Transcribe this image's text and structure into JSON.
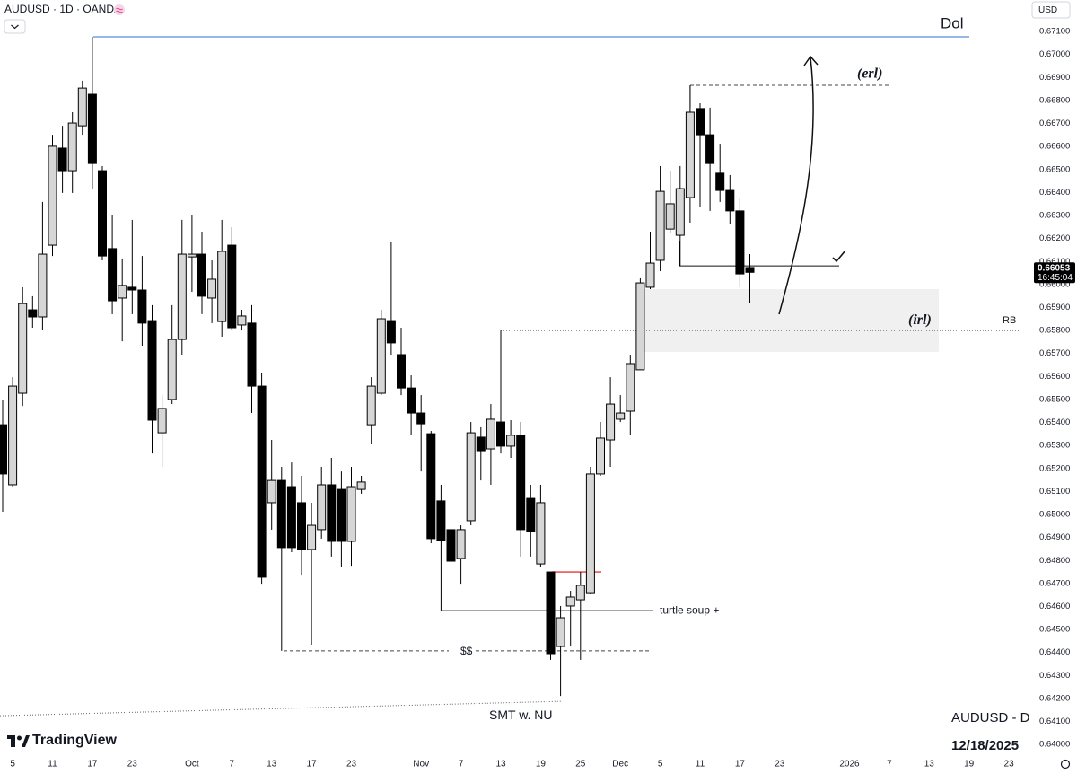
{
  "chart_data": {
    "type": "candlestick",
    "title": "AUDUSD · 1D · OANDA",
    "currency": "USD",
    "brand": "TradingView",
    "symbol_label": "AUDUSD - D",
    "date_label": "12/18/2025",
    "countdown": "16:45:04",
    "up_color": "#d6d6d6",
    "down_color": "#000000",
    "grid": false,
    "categories": [
      null,
      "5",
      null,
      null,
      null,
      "11",
      null,
      null,
      null,
      "17",
      null,
      null,
      null,
      "23",
      null,
      null,
      null,
      null,
      null,
      "Oct",
      null,
      null,
      null,
      "7",
      null,
      null,
      null,
      "13",
      null,
      null,
      null,
      "17",
      null,
      null,
      null,
      "23",
      null,
      null,
      null,
      null,
      null,
      null,
      "Nov",
      null,
      null,
      null,
      "7",
      null,
      null,
      null,
      "13",
      null,
      null,
      null,
      "19",
      null,
      null,
      null,
      "25",
      null,
      null,
      null,
      "Dec",
      null,
      null,
      null,
      "5",
      null,
      null,
      null,
      "11",
      null,
      null,
      null,
      "17",
      null,
      null,
      null,
      "23",
      null,
      null,
      null,
      null,
      null,
      null,
      "2026",
      null,
      null,
      null,
      "7",
      null,
      null,
      null,
      "13",
      null,
      null,
      null,
      "19",
      null,
      null,
      null,
      "23"
    ],
    "open": [
      0.6539,
      0.65129,
      0.65527,
      0.6589,
      0.65859,
      0.66171,
      0.66593,
      0.66495,
      0.6669,
      0.66827,
      0.66495,
      0.66156,
      0.65941,
      0.65988,
      0.65976,
      0.65843,
      0.65355,
      0.655,
      0.65761,
      0.6612,
      0.66132,
      0.65941,
      0.65839,
      0.66171,
      0.65824,
      0.65832,
      0.65558,
      0.65051,
      0.65148,
      0.65121,
      0.65051,
      0.64848,
      0.64934,
      0.65129,
      0.65109,
      0.64883,
      0.65109,
      0.6539,
      0.65527,
      0.65843,
      0.65695,
      0.6555,
      0.65441,
      0.65351,
      0.65059,
      0.64934,
      0.64809,
      0.64973,
      0.65336,
      0.65285,
      0.65402,
      0.65297,
      0.65344,
      0.6507,
      0.64785,
      0.6475,
      0.64426,
      0.64602,
      0.64629,
      0.6466,
      0.65176,
      0.65324,
      0.65414,
      0.65449,
      0.65629,
      0.65988,
      0.66105,
      0.66241,
      0.66214,
      0.66378,
      0.66765,
      0.66651,
      0.66484,
      0.66409,
      0.6632,
      0.66074,
      null,
      null,
      null,
      null,
      null,
      null,
      null,
      null,
      null,
      null,
      null,
      null,
      null,
      null,
      null,
      null,
      null,
      null,
      null,
      null,
      null,
      null,
      null,
      null,
      null,
      null
    ],
    "high": [
      0.655,
      0.65597,
      0.65988,
      0.65949,
      0.66359,
      0.66651,
      0.6669,
      0.66749,
      0.66886,
      0.67077,
      0.66515,
      0.663,
      0.66113,
      0.66281,
      0.66124,
      0.6591,
      0.65519,
      0.6591,
      0.66281,
      0.663,
      0.6623,
      0.66105,
      0.66281,
      0.66249,
      0.6589,
      0.6591,
      0.65617,
      0.65324,
      0.65207,
      0.65226,
      0.65168,
      0.65051,
      0.65207,
      0.65246,
      0.65187,
      0.65207,
      0.65168,
      0.65597,
      0.6589,
      0.66183,
      0.65812,
      0.65605,
      0.65519,
      0.65363,
      0.65129,
      0.6507,
      0.64953,
      0.65402,
      0.65383,
      0.6548,
      0.658,
      0.6541,
      0.65402,
      0.65129,
      0.65129,
      0.6475,
      0.64602,
      0.64668,
      0.6475,
      0.65207,
      0.65402,
      0.65597,
      0.65519,
      0.65695,
      0.66027,
      0.6623,
      0.66515,
      0.66495,
      0.66515,
      0.66866,
      0.66788,
      0.66769,
      0.66612,
      0.66476,
      0.66378,
      0.66132,
      null,
      null,
      null,
      null,
      null,
      null,
      null,
      null,
      null,
      null,
      null,
      null,
      null,
      null,
      null,
      null,
      null,
      null,
      null,
      null,
      null,
      null,
      null,
      null,
      null,
      null
    ],
    "low": [
      0.65012,
      0.65121,
      0.65472,
      0.65812,
      0.65804,
      0.66124,
      0.66398,
      0.66398,
      0.66651,
      0.66417,
      0.66105,
      0.65871,
      0.65753,
      0.65871,
      0.65734,
      0.65265,
      0.65207,
      0.6548,
      0.65695,
      0.65968,
      0.65871,
      0.65832,
      0.65773,
      0.658,
      0.658,
      0.65441,
      0.64699,
      0.64934,
      0.64407,
      0.64836,
      0.64738,
      0.64434,
      0.64895,
      0.64817,
      0.6477,
      0.64777,
      0.6509,
      0.65305,
      0.65519,
      0.65695,
      0.65519,
      0.65344,
      0.65187,
      0.64875,
      0.64582,
      0.64641,
      0.64699,
      0.64953,
      0.65148,
      0.65129,
      0.65265,
      0.65246,
      0.64817,
      0.64817,
      0.6477,
      0.64368,
      0.64211,
      0.64426,
      0.64368,
      0.64653,
      0.65168,
      0.65207,
      0.65402,
      0.65344,
      0.65629,
      0.6598,
      0.66058,
      0.66222,
      0.66081,
      0.66269,
      0.66339,
      0.6632,
      0.66359,
      0.66261,
      0.65988,
      0.65921,
      null,
      null,
      null,
      null,
      null,
      null,
      null,
      null,
      null,
      null,
      null,
      null,
      null,
      null,
      null,
      null,
      null,
      null,
      null,
      null,
      null,
      null,
      null,
      null,
      null,
      null
    ],
    "close": [
      0.65176,
      0.65558,
      0.65917,
      0.65859,
      0.66132,
      0.66601,
      0.66495,
      0.66702,
      0.66854,
      0.66526,
      0.66124,
      0.65929,
      0.65996,
      0.65976,
      0.65832,
      0.6541,
      0.65461,
      0.65761,
      0.66132,
      0.66132,
      0.65949,
      0.66023,
      0.66144,
      0.65812,
      0.65863,
      0.65558,
      0.64727,
      0.65148,
      0.64856,
      0.64856,
      0.64848,
      0.64953,
      0.65129,
      0.64883,
      0.64883,
      0.65121,
      0.65141,
      0.65558,
      0.65851,
      0.65746,
      0.6555,
      0.65441,
      0.65394,
      0.64895,
      0.64887,
      0.64797,
      0.64934,
      0.65355,
      0.65277,
      0.65414,
      0.65297,
      0.65344,
      0.64934,
      0.64926,
      0.65051,
      0.64395,
      0.64551,
      0.64641,
      0.64692,
      0.65176,
      0.65332,
      0.6548,
      0.65441,
      0.65656,
      0.66007,
      0.66093,
      0.66405,
      0.66351,
      0.66417,
      0.66749,
      0.66651,
      0.66526,
      0.66409,
      0.6632,
      0.66046,
      0.66053,
      null,
      null,
      null,
      null,
      null,
      null,
      null,
      null,
      null,
      null,
      null,
      null,
      null,
      null,
      null,
      null,
      null,
      null,
      null,
      null,
      null,
      null,
      null,
      null,
      null,
      null
    ],
    "last_price": {
      "value": 0.66053,
      "label": "0.66053"
    },
    "ylim": [
      0.63946,
      0.67237
    ],
    "yticks": [
      {
        "value": 0.64,
        "label": "0.64000"
      },
      {
        "value": 0.641,
        "label": "0.64100"
      },
      {
        "value": 0.642,
        "label": "0.64200"
      },
      {
        "value": 0.643,
        "label": "0.64300"
      },
      {
        "value": 0.644,
        "label": "0.64400"
      },
      {
        "value": 0.645,
        "label": "0.64500"
      },
      {
        "value": 0.646,
        "label": "0.64600"
      },
      {
        "value": 0.647,
        "label": "0.64700"
      },
      {
        "value": 0.648,
        "label": "0.64800"
      },
      {
        "value": 0.649,
        "label": "0.64900"
      },
      {
        "value": 0.65,
        "label": "0.65000"
      },
      {
        "value": 0.651,
        "label": "0.65100"
      },
      {
        "value": 0.652,
        "label": "0.65200"
      },
      {
        "value": 0.653,
        "label": "0.65300"
      },
      {
        "value": 0.654,
        "label": "0.65400"
      },
      {
        "value": 0.655,
        "label": "0.65500"
      },
      {
        "value": 0.656,
        "label": "0.65600"
      },
      {
        "value": 0.657,
        "label": "0.65700"
      },
      {
        "value": 0.658,
        "label": "0.65800"
      },
      {
        "value": 0.659,
        "label": "0.65900"
      },
      {
        "value": 0.66,
        "label": "0.66000"
      },
      {
        "value": 0.661,
        "label": "0.66100"
      },
      {
        "value": 0.662,
        "label": "0.66200"
      },
      {
        "value": 0.663,
        "label": "0.66300"
      },
      {
        "value": 0.664,
        "label": "0.66400"
      },
      {
        "value": 0.665,
        "label": "0.66500"
      },
      {
        "value": 0.666,
        "label": "0.66600"
      },
      {
        "value": 0.667,
        "label": "0.66700"
      },
      {
        "value": 0.668,
        "label": "0.66800"
      },
      {
        "value": 0.669,
        "label": "0.66900"
      },
      {
        "value": 0.67,
        "label": "0.67000"
      },
      {
        "value": 0.671,
        "label": "0.67100"
      }
    ],
    "annotations": [
      {
        "text": "Dol",
        "price": 0.67077
      },
      {
        "text": "(erl)",
        "price": 0.66866
      },
      {
        "text": "(irl)",
        "price": 0.658
      },
      {
        "text": "RB",
        "price": 0.658
      },
      {
        "text": "turtle soup +",
        "price": 0.64582
      },
      {
        "text": "$$",
        "price": 0.64407
      },
      {
        "text": "SMT w. NU",
        "price": 0.64211
      }
    ],
    "zone": [
      0.6598,
      0.65707
    ],
    "levels": [
      0.6475,
      0.66081
    ]
  }
}
